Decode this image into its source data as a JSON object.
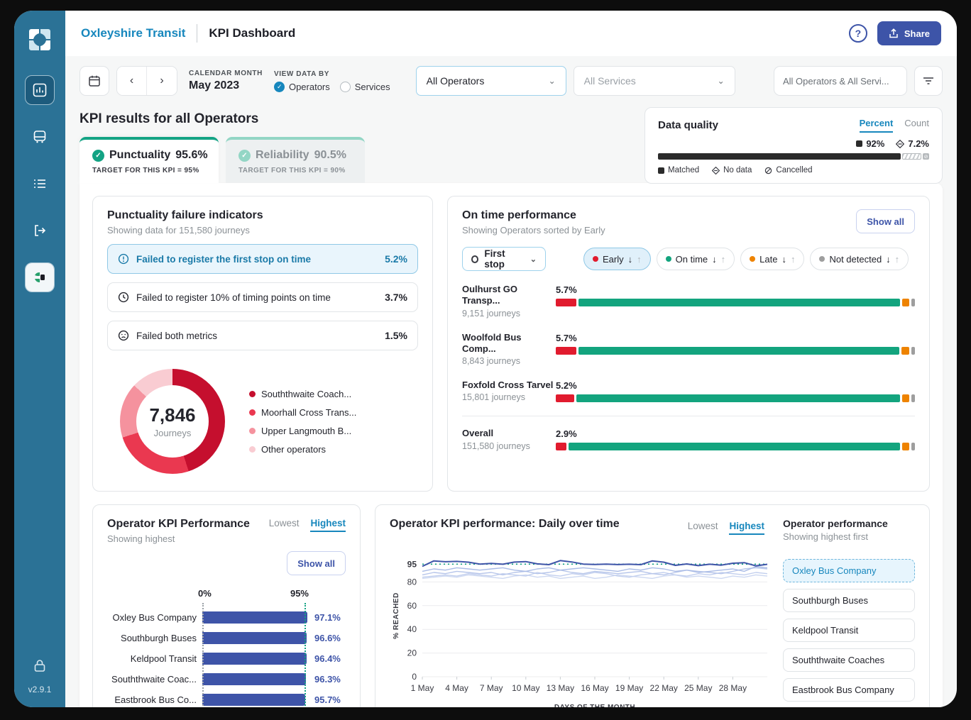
{
  "app": {
    "brand": "Oxleyshire Transit",
    "page_title": "KPI Dashboard",
    "share_label": "Share",
    "help_glyph": "?",
    "version": "v2.9.1"
  },
  "toolbar": {
    "calendar_label": "CALENDAR MONTH",
    "calendar_value": "May 2023",
    "view_by_label": "VIEW DATA BY",
    "radios": [
      {
        "label": "Operators",
        "selected": true
      },
      {
        "label": "Services",
        "selected": false
      }
    ],
    "operator_select": "All Operators",
    "services_select": "All Services",
    "search_value": "All Operators & All Servi..."
  },
  "data_quality": {
    "title": "Data quality",
    "tabs": [
      "Percent",
      "Count"
    ],
    "active_tab": "Percent",
    "matched_label": "92%",
    "no_data_label": "7.2%",
    "bar": {
      "matched": 92,
      "no_data": 7.2,
      "cancelled": 0.8
    },
    "legend": [
      "Matched",
      "No data",
      "Cancelled"
    ]
  },
  "kpi": {
    "heading": "KPI results for all Operators",
    "tabs": [
      {
        "label": "Punctuality",
        "value": "95.6%",
        "target": "TARGET FOR THIS KPI = 95%",
        "active": true
      },
      {
        "label": "Reliability",
        "value": "90.5%",
        "target": "TARGET FOR THIS KPI = 90%",
        "active": false
      }
    ]
  },
  "failure_panel": {
    "title": "Punctuality failure indicators",
    "subtitle": "Showing data for 151,580 journeys",
    "rows": [
      {
        "icon": "alert-circle",
        "label": "Failed to register the first stop on time",
        "value": "5.2%",
        "selected": true
      },
      {
        "icon": "clock",
        "label": "Failed to register 10% of timing points on time",
        "value": "3.7%",
        "selected": false
      },
      {
        "icon": "sad-face",
        "label": "Failed both metrics",
        "value": "1.5%",
        "selected": false
      }
    ],
    "donut": {
      "center_value": "7,846",
      "center_label": "Journeys",
      "segments": [
        {
          "label": "Souththwaite Coach...",
          "color": "#c50f2e",
          "pct": 45
        },
        {
          "label": "Moorhall Cross Trans...",
          "color": "#ea3850",
          "pct": 25
        },
        {
          "label": "Upper Langmouth B...",
          "color": "#f5929e",
          "pct": 17
        },
        {
          "label": "Other operators",
          "color": "#f9ccd2",
          "pct": 13
        }
      ]
    }
  },
  "ontime_panel": {
    "title": "On time performance",
    "subtitle": "Showing Operators sorted by Early",
    "show_all": "Show all",
    "first_stop": "First stop",
    "chips": [
      {
        "label": "Early",
        "color": "#e11b2e",
        "selected": true
      },
      {
        "label": "On time",
        "color": "#13a47e",
        "selected": false
      },
      {
        "label": "Late",
        "color": "#ee8300",
        "selected": false
      },
      {
        "label": "Not detected",
        "color": "#9e9e9e",
        "selected": false
      }
    ],
    "colors": {
      "early": "#e11b2e",
      "on_time": "#13a47e",
      "late": "#ee8300",
      "not_detected": "#9e9e9e"
    },
    "rows": [
      {
        "name": "Oulhurst GO Transp...",
        "journeys": "9,151 journeys",
        "early_label": "5.7%",
        "early": 5.7,
        "on_time": 89.8,
        "late": 2.0,
        "not_detected": 0.9
      },
      {
        "name": "Woolfold Bus Comp...",
        "journeys": "8,843 journeys",
        "early_label": "5.7%",
        "early": 5.7,
        "on_time": 89.6,
        "late": 2.2,
        "not_detected": 0.9
      },
      {
        "name": "Foxfold Cross Tarvel",
        "journeys": "15,801 journeys",
        "early_label": "5.2%",
        "early": 5.2,
        "on_time": 90.6,
        "late": 2.1,
        "not_detected": 0.9
      }
    ],
    "overall": {
      "name": "Overall",
      "journeys": "151,580 journeys",
      "early_label": "2.9%",
      "early": 2.9,
      "on_time": 93.0,
      "late": 2.0,
      "not_detected": 0.9
    }
  },
  "operator_kpi": {
    "title": "Operator KPI Performance",
    "subtitle": "Showing highest",
    "toggle": {
      "lowest": "Lowest",
      "highest": "Highest",
      "active": "Highest"
    },
    "show_all": "Show all",
    "axis_min_label": "0%",
    "axis_target_label": "95%",
    "target_pct": 95,
    "chart_data": {
      "type": "bar",
      "categories": [
        "Oxley Bus Company",
        "Southburgh Buses",
        "Keldpool Transit",
        "Souththwaite Coac...",
        "Eastbrook Bus Co..."
      ],
      "values": [
        97.1,
        96.6,
        96.4,
        96.3,
        95.7
      ],
      "value_labels": [
        "97.1%",
        "96.6%",
        "96.4%",
        "96.3%",
        "95.7%"
      ],
      "xlim": [
        0,
        100
      ],
      "bar_color": "#3e54a8"
    }
  },
  "daily_panel": {
    "title": "Operator KPI performance: Daily over time",
    "toggle": {
      "lowest": "Lowest",
      "highest": "Highest",
      "active": "Highest"
    },
    "legend_title": "Operator performance",
    "legend_subtitle": "Showing highest first",
    "operators": [
      "Oxley Bus Company",
      "Southburgh Buses",
      "Keldpool Transit",
      "Souththwaite Coaches",
      "Eastbrook Bus Company"
    ],
    "selected_operator": "Oxley Bus Company",
    "xlabel": "DAYS OF THE MONTH",
    "ylabel": "% REACHED",
    "chart_data": {
      "type": "line",
      "yticks": [
        0,
        20,
        40,
        60,
        80,
        95
      ],
      "ylim": [
        0,
        103
      ],
      "target": 95,
      "target_color": "#13a384",
      "x_tick_labels": [
        "1 May",
        "4 May",
        "7 May",
        "10 May",
        "13 May",
        "16 May",
        "19 May",
        "22 May",
        "25 May",
        "28 May"
      ],
      "x_tick_days": [
        1,
        4,
        7,
        10,
        13,
        16,
        19,
        22,
        25,
        28
      ],
      "days": 31,
      "series": [
        {
          "name": "Oxley Bus Company",
          "color": "#3e54a8",
          "width": 2,
          "values": [
            93.2,
            97.8,
            97.1,
            97.4,
            96.7,
            95.1,
            95.7,
            95.0,
            96.8,
            97.2,
            95.3,
            94.6,
            98.0,
            96.9,
            95.1,
            94.8,
            95.1,
            94.7,
            95.0,
            94.6,
            97.8,
            96.7,
            94.0,
            95.2,
            93.8,
            95.0,
            94.2,
            95.8,
            96.3,
            93.6,
            94.9
          ]
        },
        {
          "name": "other-1",
          "color": "#a9bbe6",
          "width": 1.4,
          "values": [
            89,
            91,
            90,
            92,
            91,
            90,
            91,
            92,
            90,
            89,
            91,
            92,
            90,
            91,
            92,
            91,
            90,
            89,
            91,
            90,
            92,
            91,
            89,
            90,
            88,
            89,
            90,
            91,
            89,
            93,
            92
          ]
        },
        {
          "name": "other-2",
          "color": "#b6c5ea",
          "width": 1.4,
          "values": [
            86,
            88,
            87,
            89,
            88,
            87,
            88,
            86,
            88,
            89,
            87,
            88,
            90,
            88,
            87,
            89,
            88,
            87,
            88,
            89,
            87,
            86,
            88,
            90,
            89,
            88,
            87,
            89,
            91,
            92,
            91
          ]
        },
        {
          "name": "other-3",
          "color": "#c2cfee",
          "width": 1.4,
          "values": [
            84,
            85,
            86,
            85,
            87,
            86,
            85,
            87,
            86,
            85,
            88,
            86,
            85,
            87,
            86,
            88,
            87,
            85,
            84,
            86,
            87,
            88,
            86,
            85,
            87,
            86,
            88,
            87,
            86,
            88,
            87
          ]
        },
        {
          "name": "other-4",
          "color": "#cdd8f1",
          "width": 1.4,
          "values": [
            83,
            84,
            85,
            84,
            86,
            85,
            84,
            83,
            85,
            86,
            84,
            85,
            83,
            84,
            85,
            83,
            84,
            86,
            85,
            84,
            83,
            85,
            86,
            84,
            85,
            84,
            83,
            85,
            84,
            86,
            85
          ]
        }
      ]
    }
  }
}
